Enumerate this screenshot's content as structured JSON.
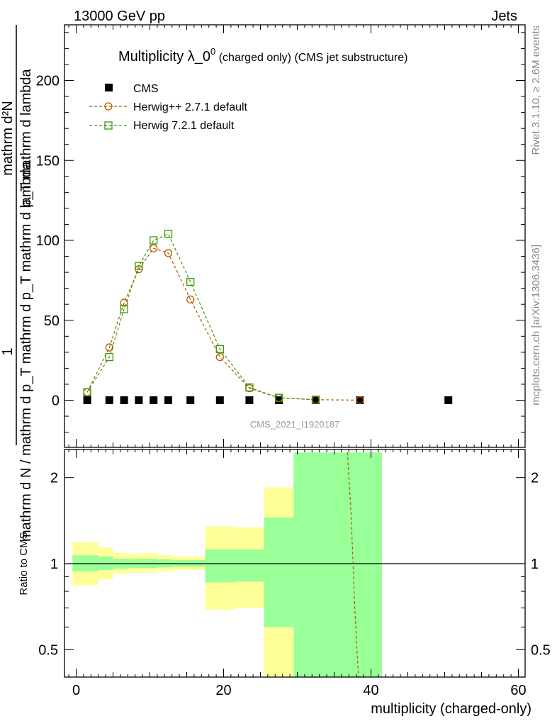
{
  "header": {
    "left": "13000 GeV pp",
    "right": "Jets"
  },
  "side_labels": {
    "rivet": "Rivet 3.1.10, ≥ 2.6M events",
    "mcplots": "mcplots.cern.ch [arXiv:1306.3436]"
  },
  "main_plot": {
    "title_main": "Multiplicity λ_0",
    "title_sup": "0",
    "title_paren": " (charged only) (CMS jet substructure)",
    "ylabel_top": "1",
    "ylabel_numerator": "mathrm d²N",
    "ylabel_denominator": "mathrm d N / mathrm d p_T mathrm d p_T mathrm d lambda",
    "watermark": "CMS_2021_I1920187",
    "y_ticks": [
      "0",
      "50",
      "100",
      "150",
      "200"
    ]
  },
  "ratio_plot": {
    "ylabel": "Ratio to CMS",
    "y_ticks": [
      "0.5",
      "1",
      "2"
    ]
  },
  "x_axis": {
    "label": "multiplicity (charged-only)",
    "ticks": [
      "0",
      "20",
      "40",
      "60"
    ]
  },
  "legend": [
    {
      "label": "CMS",
      "marker": "square-filled",
      "color": "#000000"
    },
    {
      "label": "Herwig++ 2.7.1 default",
      "marker": "circle-open",
      "color": "#b35a00"
    },
    {
      "label": "Herwig 7.2.1 default",
      "marker": "square-open",
      "color": "#3a9a00"
    }
  ],
  "chart_data": {
    "type": "scatter",
    "xlim": [
      -1.5,
      60.5
    ],
    "ylim": [
      -30,
      235
    ],
    "ratio_ylim": [
      0.35,
      2.45
    ],
    "ratio_scale": "log",
    "x": [
      1.5,
      4.5,
      6.5,
      8.5,
      10.5,
      12.5,
      15.5,
      19.5,
      23.5,
      27.5,
      32.5,
      38.5,
      50.5
    ],
    "bins": [
      [
        -1,
        3
      ],
      [
        3,
        5
      ],
      [
        5,
        7
      ],
      [
        7,
        9
      ],
      [
        9,
        11
      ],
      [
        11,
        13
      ],
      [
        13,
        17
      ],
      [
        17,
        21
      ],
      [
        21,
        25
      ],
      [
        25,
        29
      ],
      [
        29,
        35
      ],
      [
        35,
        41
      ],
      [
        41,
        59
      ]
    ],
    "series": [
      {
        "name": "CMS",
        "values": [
          0,
          0,
          0,
          0,
          0,
          0,
          0,
          0,
          0,
          0,
          0,
          0,
          0
        ]
      },
      {
        "name": "Herwig++ 2.7.1 default",
        "values": [
          5,
          33,
          61,
          82,
          95,
          92,
          63,
          27,
          7.5,
          1.5,
          0.3,
          0.05,
          null
        ]
      },
      {
        "name": "Herwig 7.2.1 default",
        "values": [
          5,
          27,
          57,
          84,
          100,
          104,
          74,
          32,
          8,
          1.5,
          0.3,
          null,
          null
        ]
      }
    ],
    "ratio_bands": {
      "stat": [
        {
          "x": [
            -0.5,
            3
          ],
          "lo": 0.94,
          "hi": 1.07
        },
        {
          "x": [
            3,
            5
          ],
          "lo": 0.95,
          "hi": 1.06
        },
        {
          "x": [
            5,
            7
          ],
          "lo": 0.96,
          "hi": 1.04
        },
        {
          "x": [
            7,
            9
          ],
          "lo": 0.965,
          "hi": 1.04
        },
        {
          "x": [
            9,
            11
          ],
          "lo": 0.965,
          "hi": 1.04
        },
        {
          "x": [
            11,
            13
          ],
          "lo": 0.97,
          "hi": 1.035
        },
        {
          "x": [
            13,
            17.5
          ],
          "lo": 0.975,
          "hi": 1.03
        },
        {
          "x": [
            17.5,
            21.5
          ],
          "lo": 0.86,
          "hi": 1.12
        },
        {
          "x": [
            21.5,
            25.5
          ],
          "lo": 0.865,
          "hi": 1.12
        },
        {
          "x": [
            25.5,
            29.5
          ],
          "lo": 0.6,
          "hi": 1.45
        },
        {
          "x": [
            29.5,
            41.5
          ],
          "lo": 0.35,
          "hi": 2.45
        }
      ],
      "total": [
        {
          "x": [
            -0.5,
            3
          ],
          "lo": 0.84,
          "hi": 1.19
        },
        {
          "x": [
            3,
            5
          ],
          "lo": 0.88,
          "hi": 1.14
        },
        {
          "x": [
            5,
            7
          ],
          "lo": 0.92,
          "hi": 1.09
        },
        {
          "x": [
            7,
            9
          ],
          "lo": 0.93,
          "hi": 1.08
        },
        {
          "x": [
            9,
            11
          ],
          "lo": 0.93,
          "hi": 1.09
        },
        {
          "x": [
            11,
            13
          ],
          "lo": 0.94,
          "hi": 1.07
        },
        {
          "x": [
            13,
            17.5
          ],
          "lo": 0.95,
          "hi": 1.06
        },
        {
          "x": [
            17.5,
            21.5
          ],
          "lo": 0.69,
          "hi": 1.35
        },
        {
          "x": [
            21.5,
            25.5
          ],
          "lo": 0.7,
          "hi": 1.34
        },
        {
          "x": [
            25.5,
            29.5
          ],
          "lo": 0.35,
          "hi": 1.85
        },
        {
          "x": [
            29.5,
            41.5
          ],
          "lo": 0.35,
          "hi": 2.45
        }
      ]
    },
    "ratio_line": {
      "name": "Herwig++ 2.7.1 default",
      "x": [
        36.8,
        37.3,
        37.8,
        38.3
      ],
      "values": [
        2.45,
        1.5,
        0.7,
        0.35
      ]
    },
    "legend_position": "top-left",
    "grid": false
  }
}
